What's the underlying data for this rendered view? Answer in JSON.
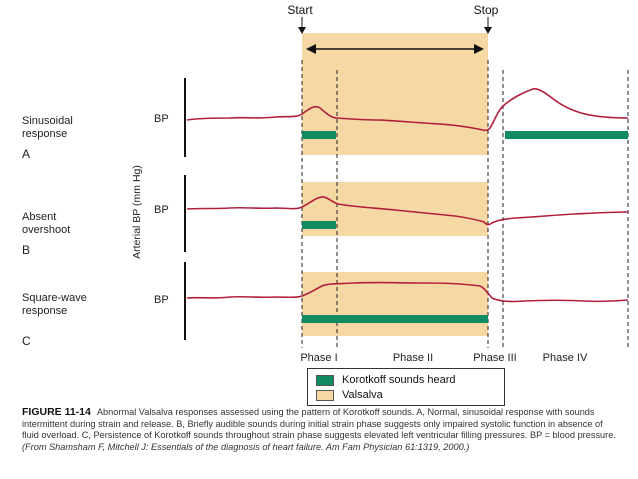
{
  "labels": {
    "start": "Start",
    "stop": "Stop",
    "y_axis": "Arterial BP (mm Hg)",
    "bp": "BP"
  },
  "panels": [
    {
      "id": "A",
      "name_line1": "Sinusoidal",
      "name_line2": "response",
      "letter": "A"
    },
    {
      "id": "B",
      "name_line1": "Absent",
      "name_line2": "overshoot",
      "letter": "B"
    },
    {
      "id": "C",
      "name_line1": "Square-wave",
      "name_line2": "response",
      "letter": "C"
    }
  ],
  "phases": [
    "Phase I",
    "Phase II",
    "Phase III",
    "Phase IV"
  ],
  "legend": {
    "korotkoff": "Korotkoff sounds heard",
    "valsalva": "Valsalva"
  },
  "colors": {
    "valsalva": "#f5d8a3",
    "korotkoff": "#0f8a63",
    "trace": "#b0203c",
    "axis": "#111111"
  },
  "caption": {
    "head": "FIGURE 11-14",
    "text": "Abnormal Valsalva responses assessed using the pattern of Korotkoff sounds. A, Normal, sinusoidal response with sounds intermittent during strain and release. B, Briefly audible sounds during initial strain phase suggests only impaired systolic function in absence of fluid overload. C, Persistence of Korotkoff sounds throughout strain phase suggests elevated left ventricular filling pressures. BP = blood pressure.",
    "citation": "(From Shamsham F, Mitchell J: Essentials of the diagnosis of heart failure. Am Fam Physician 61:1319, 2000.)"
  }
}
